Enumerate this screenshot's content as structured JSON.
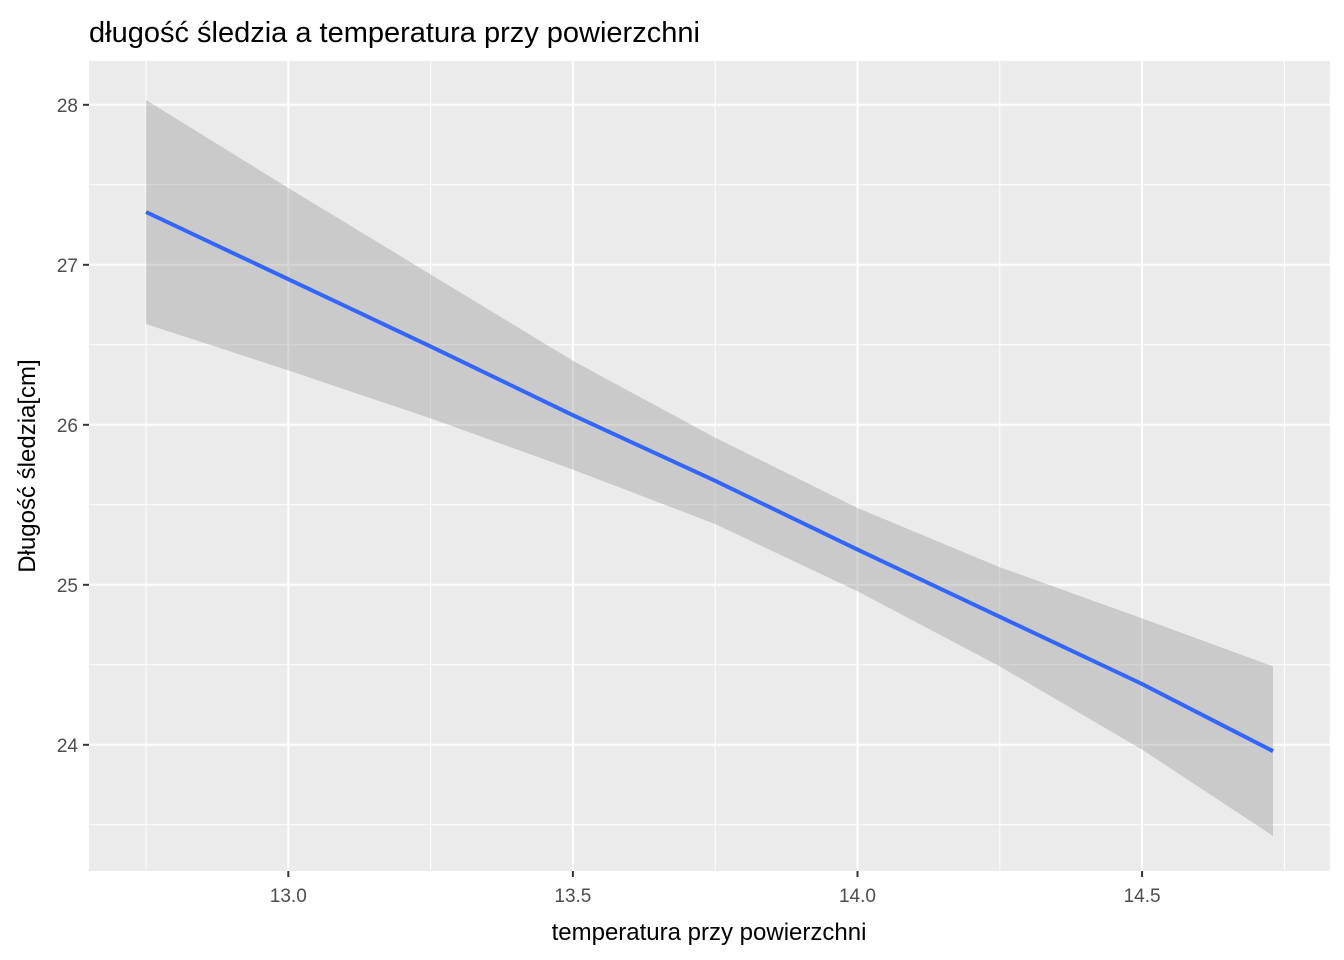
{
  "chart_data": {
    "type": "line",
    "title": "długość śledzia a temperatura przy powierzchni",
    "xlabel": "temperatura przy powierzchni",
    "ylabel": "Długość śledzia[cm]",
    "xlim": [
      12.75,
      14.73
    ],
    "ylim": [
      23.43,
      28.03
    ],
    "x_ticks": [
      "13.0",
      "13.5",
      "14.0",
      "14.5"
    ],
    "y_ticks": [
      "24",
      "25",
      "26",
      "27",
      "28"
    ],
    "grid": true,
    "legend": "none",
    "series": [
      {
        "x": [
          12.75,
          13.0,
          13.25,
          13.5,
          13.75,
          14.0,
          14.25,
          14.5,
          14.73
        ],
        "y": [
          27.33,
          26.91,
          26.49,
          26.06,
          25.65,
          25.22,
          24.8,
          24.38,
          23.96
        ],
        "ci_upper": [
          28.03,
          27.48,
          26.94,
          26.4,
          25.92,
          25.48,
          25.11,
          24.79,
          24.49
        ],
        "ci_lower": [
          26.63,
          26.34,
          26.04,
          25.72,
          25.38,
          24.96,
          24.49,
          23.97,
          23.43
        ]
      }
    ],
    "colors": {
      "line": "#3366FF",
      "band": "#999999",
      "panel": "#EBEBEB",
      "grid": "#FFFFFF"
    }
  }
}
